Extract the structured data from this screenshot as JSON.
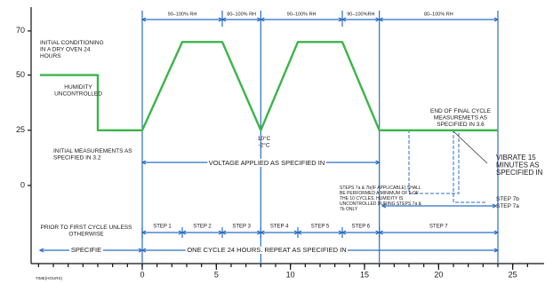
{
  "chart_data": {
    "type": "line",
    "x": [
      -6.9,
      -3,
      -3,
      0,
      2.7,
      5.4,
      8,
      10.5,
      13.5,
      16,
      24
    ],
    "values": [
      50,
      50,
      25,
      25,
      65,
      65,
      25,
      65,
      65,
      25,
      25
    ],
    "color": "#3cb44a",
    "xlim": [
      -7.5,
      27
    ],
    "ylim": [
      -35,
      80
    ],
    "xticks": [
      0,
      5,
      10,
      15,
      20,
      25
    ],
    "yticks": [
      0,
      25,
      50,
      70
    ],
    "x_label": "TIME(HOURS)",
    "rh_bands": [
      "90–100% RH",
      "80–100% RH",
      "90–100% RH",
      "90–100%RH",
      "80–100% RH"
    ],
    "steps": [
      "STEP 1",
      "STEP 2",
      "STEP 3",
      "STEP 4",
      "STEP 5",
      "STEP 6",
      "STEP 7"
    ],
    "annotations": [
      {
        "lines": [
          "INITIAL CONDITIONING",
          "IN A DRY OVEN 24",
          "HOURS"
        ]
      },
      {
        "lines": [
          "HUMIDITY",
          "UNCONTROLLED"
        ]
      },
      {
        "lines": [
          "INITIAL MEASUREMENTS AS",
          "SPECIFIED IN 3.2"
        ]
      },
      {
        "lines": [
          "10°C",
          "-2°C"
        ]
      },
      {
        "lines": [
          "VOLTAGE APPLIED AS SPECIFIED IN"
        ]
      },
      {
        "lines": [
          "END OF FINAL CYCLE",
          "MEASUREMETS AS",
          "SPECIFIED IN 3.6"
        ]
      },
      {
        "lines": [
          "VIBRATE 15",
          "MINUTES AS",
          "SPECIFIED IN"
        ]
      },
      {
        "lines": [
          "STEPS 7a & 7b(IF APPLICABLE) SHALL",
          "BE PERFORMED A MINIMUM OF 5 OF",
          "THE 10 CYCLES. HUMIDITY IS",
          "UNCONTROLLED DURING STEPS 7a &",
          "7b ONLY"
        ]
      },
      {
        "lines": [
          "STEP 7b"
        ]
      },
      {
        "lines": [
          "STEP 7a"
        ]
      },
      {
        "lines": [
          "PRIOR TO FIRST CYCLE UNLESS",
          "OTHERWISE"
        ]
      },
      {
        "lines": [
          "SPECIFIE"
        ]
      },
      {
        "lines": [
          "ONE CYCLE 24 HOURS. REPEAT AS SPECIFIED IN"
        ]
      }
    ]
  }
}
